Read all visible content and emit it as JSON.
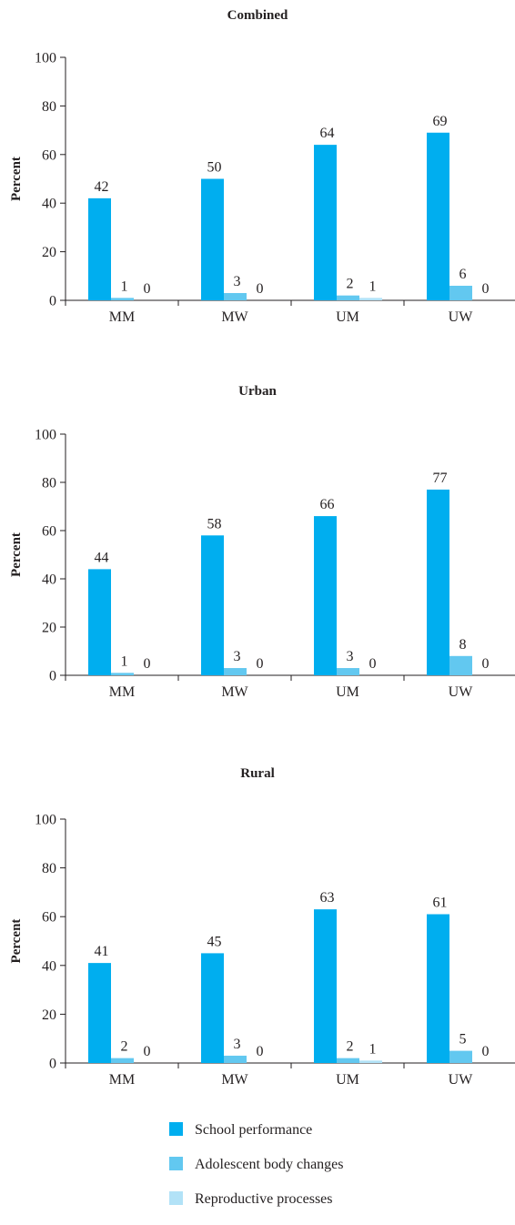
{
  "chart_data": [
    {
      "type": "bar",
      "title": "Combined",
      "ylabel": "Percent",
      "xlabel": "",
      "ylim": [
        0,
        100
      ],
      "yticks": [
        0,
        20,
        40,
        60,
        80,
        100
      ],
      "categories": [
        "MM",
        "MW",
        "UM",
        "UW"
      ],
      "series": [
        {
          "name": "School performance",
          "values": [
            42,
            50,
            64,
            69
          ]
        },
        {
          "name": "Adolescent body changes",
          "values": [
            1,
            3,
            2,
            6
          ]
        },
        {
          "name": "Reproductive processes",
          "values": [
            0,
            0,
            1,
            0
          ]
        }
      ]
    },
    {
      "type": "bar",
      "title": "Urban",
      "ylabel": "Percent",
      "xlabel": "",
      "ylim": [
        0,
        100
      ],
      "yticks": [
        0,
        20,
        40,
        60,
        80,
        100
      ],
      "categories": [
        "MM",
        "MW",
        "UM",
        "UW"
      ],
      "series": [
        {
          "name": "School performance",
          "values": [
            44,
            58,
            66,
            77
          ]
        },
        {
          "name": "Adolescent body changes",
          "values": [
            1,
            3,
            3,
            8
          ]
        },
        {
          "name": "Reproductive processes",
          "values": [
            0,
            0,
            0,
            0
          ]
        }
      ]
    },
    {
      "type": "bar",
      "title": "Rural",
      "ylabel": "Percent",
      "xlabel": "",
      "ylim": [
        0,
        100
      ],
      "yticks": [
        0,
        20,
        40,
        60,
        80,
        100
      ],
      "categories": [
        "MM",
        "MW",
        "UM",
        "UW"
      ],
      "series": [
        {
          "name": "School performance",
          "values": [
            41,
            45,
            63,
            61
          ]
        },
        {
          "name": "Adolescent body changes",
          "values": [
            2,
            3,
            2,
            5
          ]
        },
        {
          "name": "Reproductive processes",
          "values": [
            0,
            0,
            1,
            0
          ]
        }
      ]
    }
  ],
  "legend": {
    "placement": "bottom",
    "items": [
      {
        "label": "School performance",
        "color": "#00aeef"
      },
      {
        "label": "Adolescent body changes",
        "color": "#62c8f0"
      },
      {
        "label": "Reproductive processes",
        "color": "#b2e2f7"
      }
    ]
  },
  "colors": {
    "axis": "#231f20",
    "series": [
      "#00aeef",
      "#62c8f0",
      "#b2e2f7"
    ]
  }
}
